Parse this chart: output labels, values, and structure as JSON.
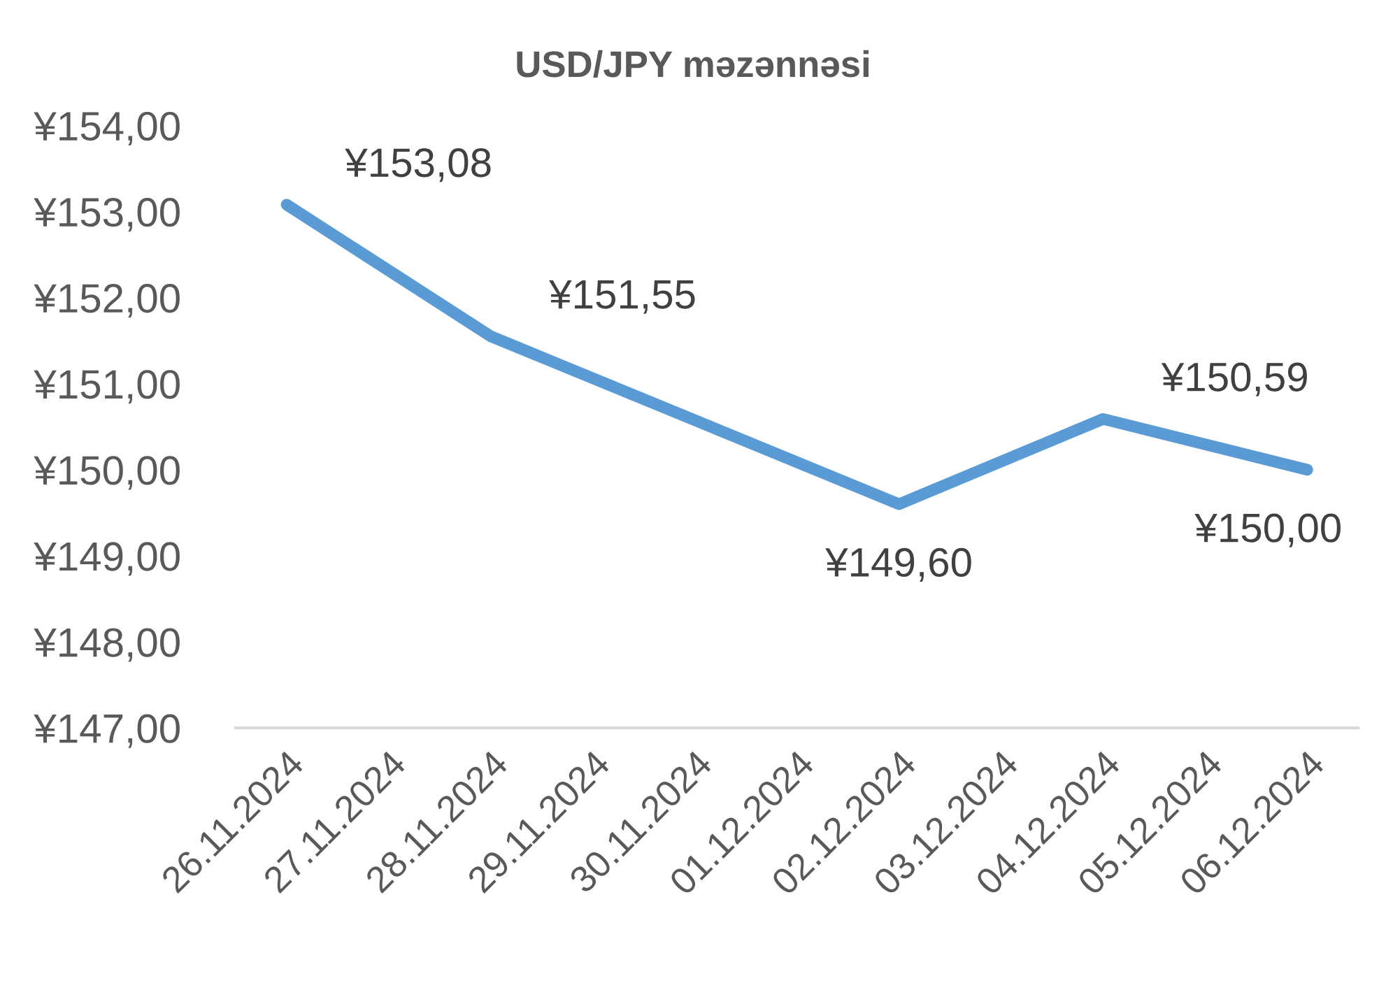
{
  "chart_data": {
    "type": "line",
    "title": "USD/JPY məzənnəsi",
    "x": [
      "2024-11-26",
      "2024-11-28",
      "2024-12-02",
      "2024-12-04",
      "2024-12-06"
    ],
    "series": [
      {
        "color": "#5b9bd5",
        "values": [
          153.08,
          151.55,
          149.6,
          150.59,
          150.0
        ],
        "value_labels": [
          "¥153,08",
          "¥151,55",
          "¥149,60",
          "¥150,59",
          "¥150,00"
        ]
      }
    ],
    "xlim": [
      "2024-11-25T12:00",
      "2024-12-06T12:00"
    ],
    "xticks": [
      {
        "value": "2024-11-26",
        "label": "26.11.2024"
      },
      {
        "value": "2024-11-27",
        "label": "27.11.2024"
      },
      {
        "value": "2024-11-28",
        "label": "28.11.2024"
      },
      {
        "value": "2024-11-29",
        "label": "29.11.2024"
      },
      {
        "value": "2024-11-30",
        "label": "30.11.2024"
      },
      {
        "value": "2024-12-01",
        "label": "01.12.2024"
      },
      {
        "value": "2024-12-02",
        "label": "02.12.2024"
      },
      {
        "value": "2024-12-03",
        "label": "03.12.2024"
      },
      {
        "value": "2024-12-04",
        "label": "04.12.2024"
      },
      {
        "value": "2024-12-05",
        "label": "05.12.2024"
      },
      {
        "value": "2024-12-06",
        "label": "06.12.2024"
      }
    ],
    "ylim": [
      147,
      154
    ],
    "yticks": [
      {
        "value": 147,
        "label": "¥147,00"
      },
      {
        "value": 148,
        "label": "¥148,00"
      },
      {
        "value": 149,
        "label": "¥149,00"
      },
      {
        "value": 150,
        "label": "¥150,00"
      },
      {
        "value": 151,
        "label": "¥151,00"
      },
      {
        "value": 152,
        "label": "¥152,00"
      },
      {
        "value": 153,
        "label": "¥153,00"
      },
      {
        "value": 154,
        "label": "¥154,00"
      }
    ],
    "grid": false,
    "legend": false,
    "marker": "none",
    "line_style": "solid"
  }
}
